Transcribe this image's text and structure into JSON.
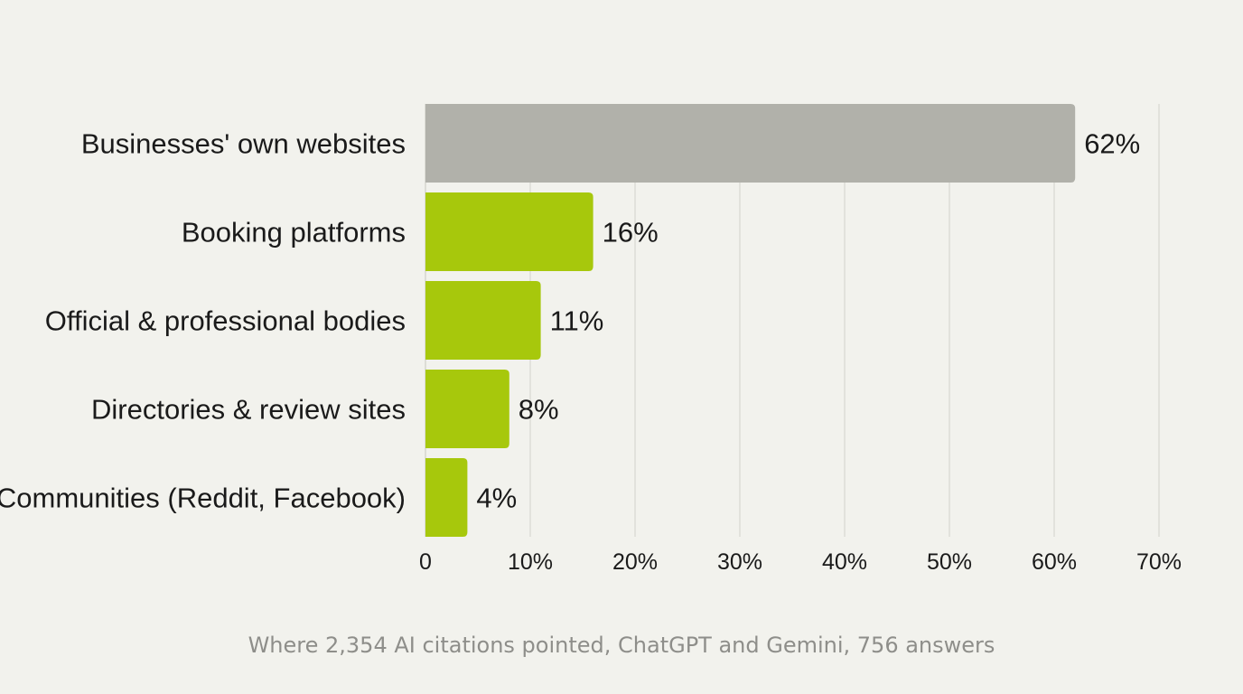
{
  "chart_data": {
    "type": "bar",
    "orientation": "horizontal",
    "categories": [
      "Businesses' own websites",
      "Booking platforms",
      "Official & professional bodies",
      "Directories & review sites",
      "Communities (Reddit, Facebook)"
    ],
    "values": [
      62,
      16,
      11,
      8,
      4
    ],
    "value_labels": [
      "62%",
      "16%",
      "11%",
      "8%",
      "4%"
    ],
    "bar_colors": [
      "#b1b1aa",
      "#a7c80c",
      "#a7c80c",
      "#a7c80c",
      "#a7c80c"
    ],
    "xlim": [
      0,
      70
    ],
    "xticks": [
      0,
      10,
      20,
      30,
      40,
      50,
      60,
      70
    ],
    "xtick_labels": [
      "0",
      "10%",
      "20%",
      "30%",
      "40%",
      "50%",
      "60%",
      "70%"
    ],
    "grid": "vertical",
    "caption": "Where 2,354 AI citations pointed, ChatGPT and Gemini, 756 answers"
  },
  "colors": {
    "background": "#f2f2ed",
    "gridline": "#d7d7d0",
    "text": "#1a1a1a",
    "caption": "#8e8e8a"
  }
}
